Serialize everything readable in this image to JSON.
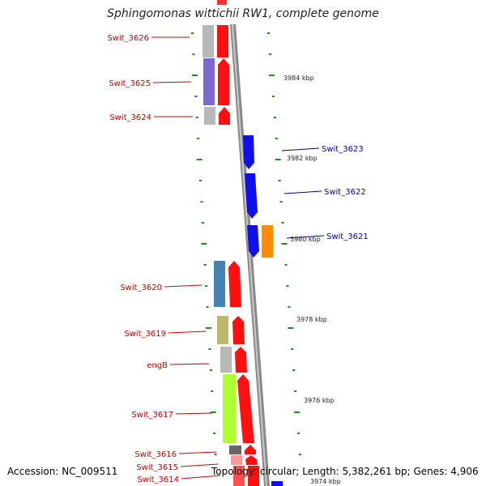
{
  "title": "Sphingomonas wittichii RW1, complete genome",
  "accession": "Accession: NC_009511",
  "topology": "Topology: circular; Length: 5,382,261 bp; Genes: 4,906",
  "colors": {
    "forward_gene": "#ff0000",
    "reverse_gene": "#0000ff",
    "backbone": "#888888",
    "tick": "#228b22",
    "label_forward": "#cc0000",
    "label_reverse": "#0000aa"
  },
  "kbp_markers": [
    "3984 kbp",
    "3982 kbp",
    "3980 kbp",
    "3978 kbp",
    "3976 kbp",
    "3974 kbp"
  ],
  "genes": [
    {
      "name": "Swit_3626",
      "strand": "forward"
    },
    {
      "name": "Swit_3625",
      "strand": "forward"
    },
    {
      "name": "Swit_3624",
      "strand": "forward"
    },
    {
      "name": "Swit_3623",
      "strand": "reverse"
    },
    {
      "name": "Swit_3622",
      "strand": "reverse"
    },
    {
      "name": "Swit_3621",
      "strand": "reverse"
    },
    {
      "name": "Swit_3620",
      "strand": "forward"
    },
    {
      "name": "Swit_3619",
      "strand": "forward"
    },
    {
      "name": "engB",
      "strand": "forward"
    },
    {
      "name": "Swit_3617",
      "strand": "forward"
    },
    {
      "name": "Swit_3616",
      "strand": "forward"
    },
    {
      "name": "Swit_3615",
      "strand": "forward"
    },
    {
      "name": "Swit_3614",
      "strand": "forward"
    }
  ]
}
